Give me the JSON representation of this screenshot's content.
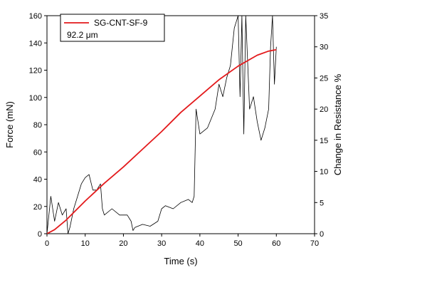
{
  "chart_data": {
    "type": "line",
    "title": "",
    "xlabel": "Time (s)",
    "ylabel_left": "Force (mN)",
    "ylabel_right": "Change in Resistance %",
    "xlim": [
      0,
      70
    ],
    "ylim_left": [
      0,
      160
    ],
    "ylim_right": [
      0,
      35
    ],
    "xticks": [
      "0",
      "10",
      "20",
      "30",
      "40",
      "50",
      "60",
      "70"
    ],
    "yticks_left": [
      "0",
      "20",
      "40",
      "60",
      "80",
      "100",
      "120",
      "140",
      "160"
    ],
    "yticks_right": [
      "0",
      "5",
      "10",
      "15",
      "20",
      "25",
      "30",
      "35"
    ],
    "grid": false,
    "legend_position": "top-left",
    "legend_entries": [
      "SG-CNT-SF-9",
      "92.2 μm"
    ],
    "series": [
      {
        "name": "SG-CNT-SF-9",
        "axis": "left",
        "color": "#e31a1c",
        "x": [
          0,
          2,
          5,
          10,
          15,
          20,
          25,
          30,
          35,
          40,
          45,
          50,
          55,
          58,
          60
        ],
        "y": [
          0,
          3,
          10,
          24,
          37,
          49,
          62,
          75,
          89,
          101,
          113,
          123,
          131,
          134,
          135
        ]
      },
      {
        "name": "",
        "axis": "right",
        "color": "#000000",
        "x": [
          0,
          1,
          2,
          3,
          4,
          5,
          5.5,
          6,
          7,
          8,
          9,
          10,
          11,
          12,
          13,
          14,
          14.5,
          15,
          17,
          19,
          21,
          22,
          22.5,
          23,
          25,
          27,
          29,
          30,
          31,
          33,
          35,
          37,
          38,
          38.5,
          39,
          40,
          42,
          44,
          45,
          46,
          47,
          48,
          49,
          50,
          50.5,
          51,
          51.5,
          52,
          53,
          54,
          55,
          56,
          57,
          58,
          58.5,
          59,
          59.5,
          60
        ],
        "y": [
          0,
          6,
          2,
          5,
          3,
          4,
          0,
          1,
          4,
          6,
          8,
          9,
          9.5,
          7,
          7,
          8,
          4,
          3,
          4,
          3,
          3,
          2,
          0.5,
          1,
          1.5,
          1.2,
          2,
          4,
          4.5,
          4,
          5,
          5.5,
          5,
          6,
          20,
          16,
          17,
          20,
          24,
          22,
          25,
          27,
          33,
          35,
          22,
          35,
          16,
          35,
          20,
          22,
          18,
          15,
          17,
          20,
          30,
          35,
          24,
          30
        ]
      }
    ]
  }
}
